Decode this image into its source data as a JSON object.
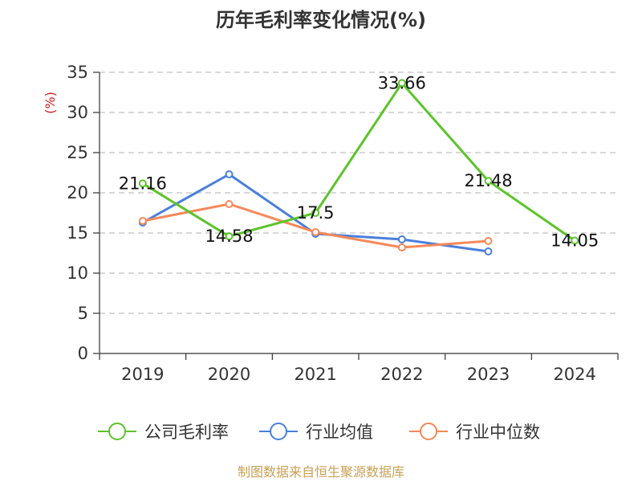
{
  "chart_data": {
    "type": "line",
    "title": "历年毛利率变化情况(%)",
    "unit_label": "(%)",
    "categories": [
      "2019",
      "2020",
      "2021",
      "2022",
      "2023",
      "2024"
    ],
    "yticks": [
      "0",
      "5",
      "10",
      "15",
      "20",
      "25",
      "30",
      "35"
    ],
    "ylim": [
      0,
      35
    ],
    "grid": true,
    "legend_position": "bottom",
    "series": [
      {
        "name": "公司毛利率",
        "color": "#5cc42a",
        "values": [
          21.16,
          14.58,
          17.5,
          33.66,
          21.48,
          14.05
        ],
        "labels": [
          "21.16",
          "14.58",
          "17.5",
          "33.66",
          "21.48",
          "14.05"
        ]
      },
      {
        "name": "行业均值",
        "color": "#4a7fdc",
        "values": [
          16.3,
          22.3,
          14.9,
          14.2,
          12.7,
          null
        ]
      },
      {
        "name": "行业中位数",
        "color": "#f4895a",
        "values": [
          16.5,
          18.6,
          15.1,
          13.2,
          14.0,
          null
        ]
      }
    ]
  },
  "source": "制图数据来自恒生聚源数据库"
}
